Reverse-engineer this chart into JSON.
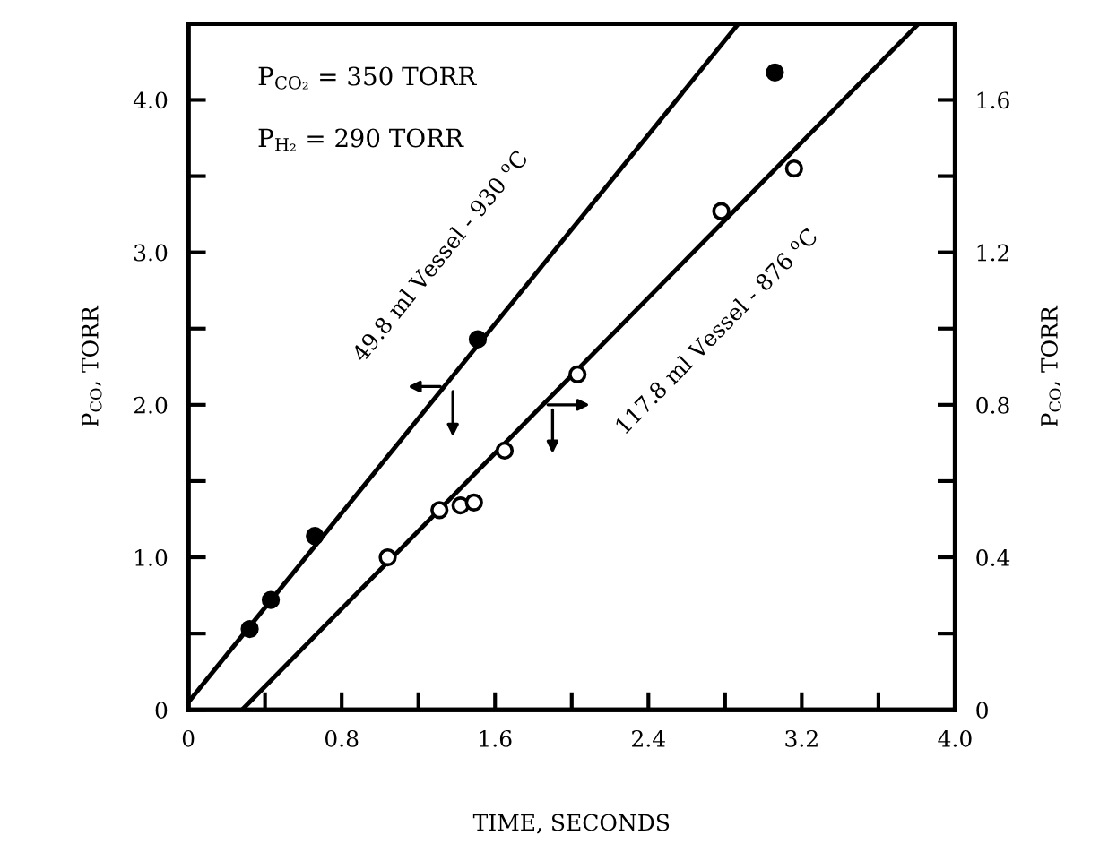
{
  "chart_data": {
    "type": "scatter",
    "xlabel": "TIME, SECONDS",
    "ylabel": "P$_{CO}$, TORR",
    "y2label": "P$_{CO}$, TORR",
    "xlim": [
      0,
      4.0
    ],
    "ylim": [
      0,
      4.5
    ],
    "y2lim": [
      0,
      1.8
    ],
    "xticks": [
      0,
      {
        "value": 0.4,
        "label": null
      },
      0.8,
      {
        "value": 1.2,
        "label": null
      },
      1.6,
      {
        "value": 2.0,
        "label": null
      },
      2.4,
      {
        "value": 2.8,
        "label": null
      },
      3.2,
      {
        "value": 3.6,
        "label": null
      },
      {
        "value": 4.0,
        "label": "4.0"
      }
    ],
    "yticks": [
      0,
      {
        "value": 0.5,
        "label": null
      },
      {
        "value": 1.0,
        "label": "1.0"
      },
      {
        "value": 1.5,
        "label": null
      },
      {
        "value": 2.0,
        "label": "2.0"
      },
      {
        "value": 2.5,
        "label": null
      },
      {
        "value": 3.0,
        "label": "3.0"
      },
      {
        "value": 3.5,
        "label": null
      },
      {
        "value": 4.0,
        "label": "4.0"
      }
    ],
    "y2ticks": [
      0,
      {
        "value": 0.2,
        "label": null
      },
      0.4,
      {
        "value": 0.6,
        "label": null
      },
      0.8,
      {
        "value": 1.0,
        "label": null
      },
      1.2,
      {
        "value": 1.4,
        "label": null
      },
      1.6
    ],
    "grid": false,
    "legend": false,
    "marker": "circle",
    "series": [
      {
        "color": "#000000",
        "x": [
          0.32,
          0.43,
          0.66,
          1.51,
          3.06
        ],
        "values": [
          0.53,
          0.72,
          1.14,
          2.43,
          4.18
        ]
      },
      {
        "color": "#ffffff",
        "x": [
          1.04,
          1.31,
          1.42,
          1.49,
          1.65,
          2.03,
          2.78,
          3.16
        ],
        "values": [
          1.0,
          1.31,
          1.34,
          1.36,
          1.7,
          2.2,
          3.27,
          3.55
        ]
      },
      {
        "type": "line",
        "color": "#000000",
        "marker": "none",
        "line_style": "solid",
        "x": [
          0,
          2.87
        ],
        "values": [
          0.05,
          4.5
        ]
      },
      {
        "type": "line",
        "color": "#000000",
        "marker": "none",
        "line_style": "solid",
        "x": [
          0.28,
          3.81
        ],
        "values": [
          0,
          4.5
        ]
      }
    ],
    "annotations": [
      "P$_{CO₂}$ = 350 TORR",
      "P$_{H₂}$ = 290 TORR",
      "49.8 ml Vessel - 930 $^{o}$C",
      "117.8 ml Vessel - 876 $^{o}$C"
    ]
  }
}
